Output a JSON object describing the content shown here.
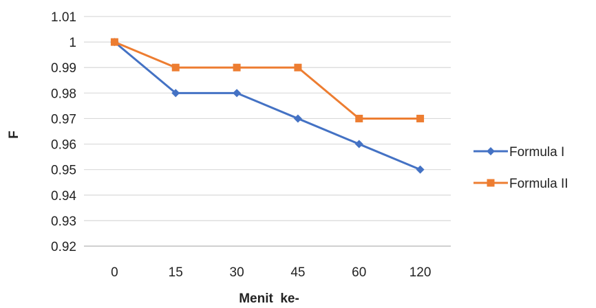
{
  "chart_data": {
    "type": "line",
    "title": "",
    "xlabel": "Menit  ke-",
    "ylabel": "F",
    "categories": [
      "0",
      "15",
      "30",
      "45",
      "60",
      "120"
    ],
    "y_ticks": [
      "0.92",
      "0.93",
      "0.94",
      "0.95",
      "0.96",
      "0.97",
      "0.98",
      "0.99",
      "1",
      "1.01"
    ],
    "ylim": [
      0.92,
      1.01
    ],
    "grid": true,
    "legend_position": "right",
    "series": [
      {
        "name": "Formula I",
        "values": [
          1.0,
          0.98,
          0.98,
          0.97,
          0.96,
          0.95
        ],
        "color": "#4472C4",
        "marker": "diamond"
      },
      {
        "name": "Formula II",
        "values": [
          1.0,
          0.99,
          0.99,
          0.99,
          0.97,
          0.97
        ],
        "color": "#ED7D31",
        "marker": "square"
      }
    ]
  }
}
